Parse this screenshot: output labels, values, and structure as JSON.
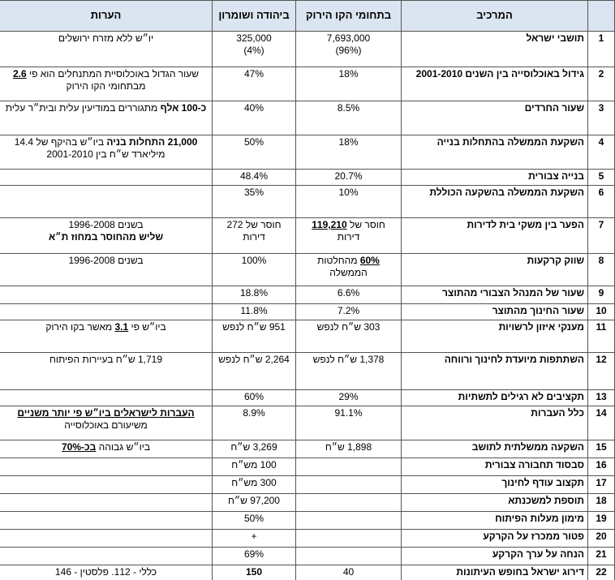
{
  "table": {
    "header": {
      "component": "המרכיב",
      "green": "בתחומי הקו הירוק",
      "ws": "ביהודה ושומרון",
      "notes": "הערות"
    },
    "rows": [
      {
        "num": 1,
        "component": "תושבי ישראל",
        "green": [
          "7,693,000",
          "(96%)"
        ],
        "ws": [
          "325,000",
          "(4%)"
        ],
        "notes": "יו״ש ללא מזרח ירושלים"
      },
      {
        "num": 2,
        "component": "גידול באוכלוסייה בין השנים 2001-2010",
        "green": "18%",
        "ws": "47%",
        "notes": [
          "שעור הגדול באוכלוסיית המתנחלים הוא פי ",
          "2.6",
          " מבתחומי הקו הירוק"
        ]
      },
      {
        "num": 3,
        "component": "שעור החרדים",
        "green": "8.5%",
        "ws": "40%",
        "notes": [
          "כ-100 אלף",
          " מתגוררים במודיעין עלית ובית״ר עלית"
        ]
      },
      {
        "num": 4,
        "component": "השקעת הממשלה בהתחלות בנייה",
        "green": "18%",
        "ws": "50%",
        "notes": [
          "21,000 התחלות בניה",
          " ביו״ש בהיקף של 14.4 מיליארד ש״ח בין 2001-2010"
        ]
      },
      {
        "num": 5,
        "component": "בנייה צבורית",
        "green": "20.7%",
        "ws": "48.4%"
      },
      {
        "num": 6,
        "component": "השקעת הממשלה בהשקעה הכוללת",
        "green": "10%",
        "ws": "35%"
      },
      {
        "num": 7,
        "component": "הפער בין משקי בית לדירות",
        "green": [
          "חוסר של ",
          "119,210",
          " דירות"
        ],
        "ws": "חוסר של 272 דירות",
        "notes": [
          "בשנים 1996-2008",
          "שליש מהחוסר במחוז ת״א"
        ]
      },
      {
        "num": 8,
        "component": "שווק קרקעות",
        "green": [
          "60%",
          " מהחלטות הממשלה"
        ],
        "ws": "100%",
        "notes": "בשנים 1996-2008"
      },
      {
        "num": 9,
        "component": "שעור של המנהל הצבורי מהתוצר",
        "green": "6.6%",
        "ws": "18.8%"
      },
      {
        "num": 10,
        "component": "שעור החינוך מהתוצר",
        "green": "7.2%",
        "ws": "11.8%"
      },
      {
        "num": 11,
        "component": "מענקי איזון לרשויות",
        "green": "303 ש״ח לנפש",
        "ws": "951 ש״ח לנפש",
        "notes": [
          "ביו״ש פי ",
          "3.1",
          " מאשר בקו הירוק"
        ]
      },
      {
        "num": 12,
        "component": "השתתפות מיועדת לחינוך ורווחה",
        "green": "1,378 ש״ח לנפש",
        "ws": "2,264 ש״ח לנפש",
        "notes": "1,719 ש״ח בעיירות הפיתוח"
      },
      {
        "num": 13,
        "component": "תקציבים לא רגילים לתשתיות",
        "green": "29%",
        "ws": "60%"
      },
      {
        "num": 14,
        "component": "כלל העברות",
        "green": "91.1%",
        "ws": "8.9%",
        "notes": [
          "העברות לישראלים ביו״ש פי יותר משניים",
          " משיעורם באוכלוסייה"
        ]
      },
      {
        "num": 15,
        "component": "השקעה ממשלתית לתושב",
        "green": "1,898 ש״ח",
        "ws": "3,269 ש״ח",
        "notes": [
          "ביו״ש גבוהה ",
          "בכ-70%"
        ]
      },
      {
        "num": 16,
        "component": "סבסוד תחבורה צבורית",
        "ws": "100 מש״ח"
      },
      {
        "num": 17,
        "component": "תקצוב עודף לחינוך",
        "ws": "300 מש״ח"
      },
      {
        "num": 18,
        "component": "תוספת למשכנתא",
        "ws": "97,200 ש״ח"
      },
      {
        "num": 19,
        "component": "מימון מעלות הפיתוח",
        "ws": "50%"
      },
      {
        "num": 20,
        "component": "פטור ממכרז על הקרקע",
        "ws": "+"
      },
      {
        "num": 21,
        "component": "הנחה על ערך הקרקע",
        "ws": "69%"
      },
      {
        "num": 22,
        "component": "דירוג ישראל בחופש העיתונות",
        "green": "40",
        "ws": "150",
        "notes": "כללי - 112. פלסטין - 146"
      }
    ]
  }
}
